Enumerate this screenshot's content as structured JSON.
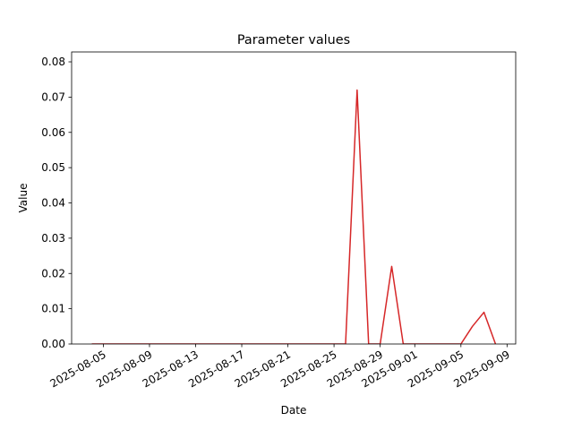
{
  "chart_data": {
    "type": "line",
    "title": "Parameter values",
    "x_label": "Date",
    "y_label": "Value",
    "x": [
      "2025-08-04",
      "2025-08-05",
      "2025-08-06",
      "2025-08-07",
      "2025-08-08",
      "2025-08-09",
      "2025-08-10",
      "2025-08-11",
      "2025-08-12",
      "2025-08-13",
      "2025-08-14",
      "2025-08-15",
      "2025-08-16",
      "2025-08-17",
      "2025-08-18",
      "2025-08-19",
      "2025-08-20",
      "2025-08-21",
      "2025-08-22",
      "2025-08-23",
      "2025-08-24",
      "2025-08-25",
      "2025-08-26",
      "2025-08-27",
      "2025-08-28",
      "2025-08-29",
      "2025-08-30",
      "2025-08-31",
      "2025-09-01",
      "2025-09-02",
      "2025-09-03",
      "2025-09-04",
      "2025-09-05",
      "2025-09-06",
      "2025-09-07",
      "2025-09-08"
    ],
    "series": [
      {
        "color": "#d62728",
        "values": [
          0,
          0,
          0,
          0,
          0,
          0,
          0,
          0,
          0,
          0,
          0,
          0,
          0,
          0,
          0,
          0,
          0,
          0,
          0,
          0,
          0,
          0,
          0,
          0.072,
          0,
          0,
          0.022,
          0,
          0,
          0,
          0,
          0,
          0,
          0.005,
          0.009,
          0
        ]
      }
    ],
    "xlim": [
      "2025-08-02T06:00",
      "2025-09-09T18:00"
    ],
    "xticks": [
      "2025-08-05",
      "2025-08-09",
      "2025-08-13",
      "2025-08-17",
      "2025-08-21",
      "2025-08-25",
      "2025-08-29",
      "2025-09-01",
      "2025-09-05",
      "2025-09-09"
    ],
    "ylim": [
      0,
      0.0828
    ],
    "yticks": [
      {
        "value": 0,
        "label": "0.00"
      },
      {
        "value": 0.01,
        "label": "0.01"
      },
      {
        "value": 0.02,
        "label": "0.02"
      },
      {
        "value": 0.03,
        "label": "0.03"
      },
      {
        "value": 0.04,
        "label": "0.04"
      },
      {
        "value": 0.05,
        "label": "0.05"
      },
      {
        "value": 0.06,
        "label": "0.06"
      },
      {
        "value": 0.07,
        "label": "0.07"
      },
      {
        "value": 0.08,
        "label": "0.08"
      }
    ],
    "grid": false
  }
}
